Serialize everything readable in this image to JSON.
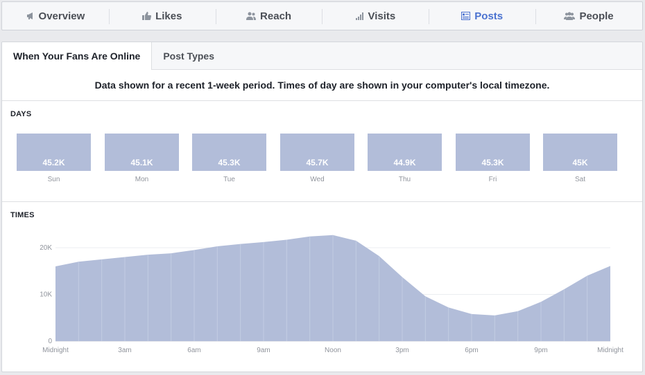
{
  "nav": {
    "items": [
      {
        "label": "Overview",
        "icon": "megaphone-icon"
      },
      {
        "label": "Likes",
        "icon": "thumbs-up-icon"
      },
      {
        "label": "Reach",
        "icon": "people-icon"
      },
      {
        "label": "Visits",
        "icon": "bar-chart-icon"
      },
      {
        "label": "Posts",
        "icon": "posts-list-icon"
      },
      {
        "label": "People",
        "icon": "group-icon"
      }
    ],
    "active": "Posts",
    "active_color": "#4a72d0"
  },
  "subtabs": {
    "items": [
      {
        "label": "When Your Fans Are Online"
      },
      {
        "label": "Post Types"
      }
    ],
    "active": "When Your Fans Are Online"
  },
  "notice": "Data shown for a recent 1-week period. Times of day are shown in your computer's local timezone.",
  "days": {
    "title": "DAYS",
    "bar_color": "#b2bdd9",
    "items": [
      {
        "day": "Sun",
        "value": "45.2K"
      },
      {
        "day": "Mon",
        "value": "45.1K"
      },
      {
        "day": "Tue",
        "value": "45.3K"
      },
      {
        "day": "Wed",
        "value": "45.7K"
      },
      {
        "day": "Thu",
        "value": "44.9K"
      },
      {
        "day": "Fri",
        "value": "45.3K"
      },
      {
        "day": "Sat",
        "value": "45K"
      }
    ]
  },
  "times": {
    "title": "TIMES",
    "chart_data": {
      "type": "area",
      "x": [
        0,
        1,
        2,
        3,
        4,
        5,
        6,
        7,
        8,
        9,
        10,
        11,
        12,
        13,
        14,
        15,
        16,
        17,
        18,
        19,
        20,
        21,
        22,
        23,
        24
      ],
      "values": [
        16000,
        17000,
        17500,
        18000,
        18500,
        18800,
        19500,
        20300,
        20800,
        21200,
        21700,
        22400,
        22700,
        21500,
        18200,
        13700,
        9600,
        7200,
        5800,
        5500,
        6400,
        8400,
        11100,
        14000,
        16100
      ],
      "x_tick_labels": [
        "Midnight",
        "3am",
        "6am",
        "9am",
        "Noon",
        "3pm",
        "6pm",
        "9pm",
        "Midnight"
      ],
      "x_tick_positions": [
        0,
        3,
        6,
        9,
        12,
        15,
        18,
        21,
        24
      ],
      "y_ticks": [
        0,
        10000,
        20000
      ],
      "y_tick_labels": [
        "0",
        "10K",
        "20K"
      ],
      "ylim": [
        0,
        20000
      ],
      "grid": true,
      "fill_color": "#b2bdd9"
    }
  }
}
